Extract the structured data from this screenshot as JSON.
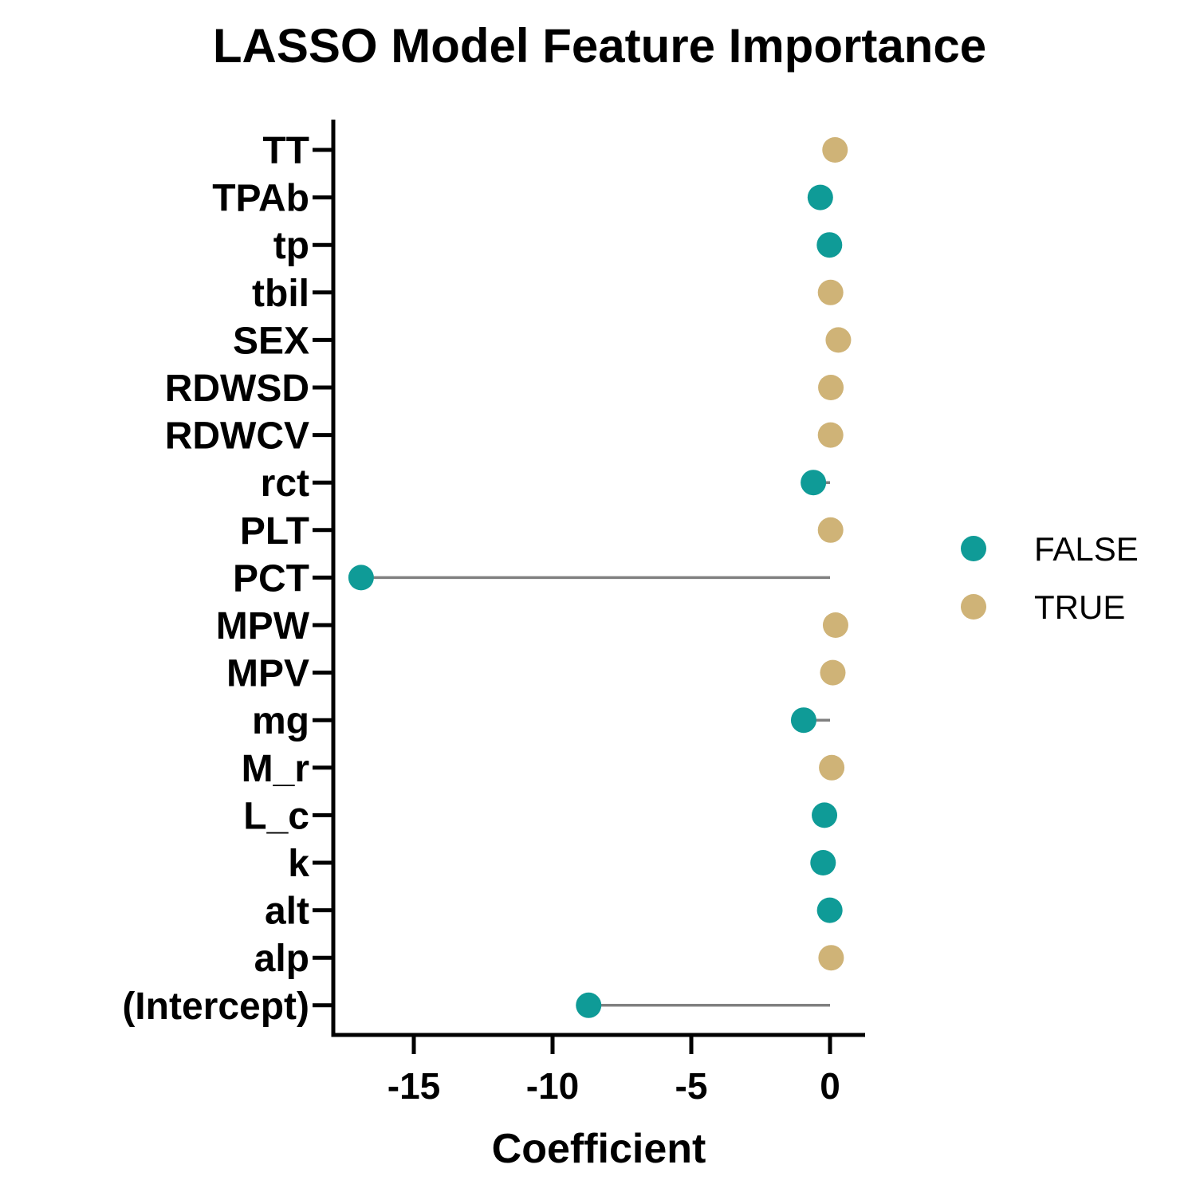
{
  "chart_data": {
    "type": "lollipop",
    "title": "LASSO Model Feature Importance",
    "xlabel": "Coefficient",
    "ylabel": "",
    "xlim": [
      -17.8,
      1.3
    ],
    "xticks": [
      -15,
      -10,
      -5,
      0
    ],
    "xtick_labels": [
      "-15",
      "-10",
      "-5",
      "0"
    ],
    "grid": false,
    "legend": {
      "placement": "right",
      "entries": [
        {
          "label": "FALSE",
          "color": "#0f9b97"
        },
        {
          "label": "TRUE",
          "color": "#cfb377"
        }
      ]
    },
    "line_color": "#808080",
    "features": [
      {
        "name": "TT",
        "value": 0.18,
        "positive": "TRUE"
      },
      {
        "name": "TPAb",
        "value": -0.35,
        "positive": "FALSE"
      },
      {
        "name": "tp",
        "value": -0.02,
        "positive": "FALSE"
      },
      {
        "name": "tbil",
        "value": 0.02,
        "positive": "TRUE"
      },
      {
        "name": "SEX",
        "value": 0.3,
        "positive": "TRUE"
      },
      {
        "name": "RDWSD",
        "value": 0.03,
        "positive": "TRUE"
      },
      {
        "name": "RDWCV",
        "value": 0.02,
        "positive": "TRUE"
      },
      {
        "name": "rct",
        "value": -0.6,
        "positive": "FALSE"
      },
      {
        "name": "PLT",
        "value": 0.02,
        "positive": "TRUE"
      },
      {
        "name": "PCT",
        "value": -16.9,
        "positive": "FALSE"
      },
      {
        "name": "MPW",
        "value": 0.2,
        "positive": "TRUE"
      },
      {
        "name": "MPV",
        "value": 0.1,
        "positive": "TRUE"
      },
      {
        "name": "mg",
        "value": -0.95,
        "positive": "FALSE"
      },
      {
        "name": "M_r",
        "value": 0.06,
        "positive": "TRUE"
      },
      {
        "name": "L_c",
        "value": -0.2,
        "positive": "FALSE"
      },
      {
        "name": "k",
        "value": -0.25,
        "positive": "FALSE"
      },
      {
        "name": "alt",
        "value": -0.01,
        "positive": "FALSE"
      },
      {
        "name": "alp",
        "value": 0.04,
        "positive": "TRUE"
      },
      {
        "name": "(Intercept)",
        "value": -8.7,
        "positive": "FALSE"
      }
    ]
  }
}
